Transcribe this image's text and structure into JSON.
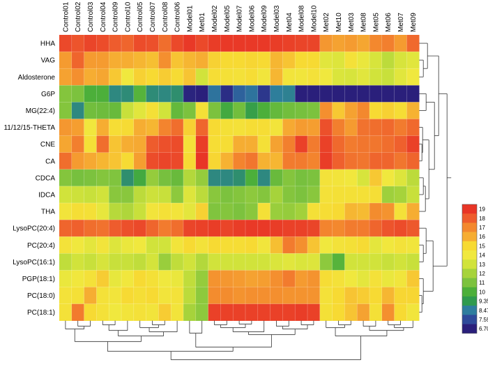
{
  "chart_data": {
    "type": "heatmap",
    "title": "",
    "columns": [
      "Control01",
      "Control02",
      "Control03",
      "Control04",
      "Control09",
      "Control10",
      "Control05",
      "Control07",
      "Control08",
      "Control06",
      "Model01",
      "Met01",
      "Model02",
      "Model05",
      "Model07",
      "Model06",
      "Model09",
      "Model03",
      "Met04",
      "Model08",
      "Model10",
      "Met02",
      "Met10",
      "Met03",
      "Met08",
      "Met05",
      "Met06",
      "Met07",
      "Met09"
    ],
    "rows": [
      "HHA",
      "VAG",
      "Aldosterone",
      "G6P",
      "MG(22:4)",
      "11/12/15-THETA",
      "CNE",
      "CA",
      "CDCA",
      "IDCA",
      "THA",
      "LysoPC(20:4)",
      "PC(20:4)",
      "LysoPC(16:1)",
      "PGP(18:1)",
      "PC(18:0)",
      "PC(18:1)"
    ],
    "values": [
      [
        18.5,
        18.2,
        18.6,
        18.4,
        18.0,
        17.8,
        18.4,
        18.3,
        17.6,
        18.5,
        18.9,
        18.5,
        18.8,
        18.9,
        18.9,
        18.9,
        18.9,
        18.8,
        18.7,
        18.6,
        18.6,
        16.6,
        16.3,
        16.5,
        16.2,
        17.0,
        17.2,
        16.5,
        17.7
      ],
      [
        16.5,
        17.8,
        16.5,
        16.5,
        16.0,
        16.0,
        15.8,
        15.6,
        16.8,
        15.5,
        15.8,
        16.0,
        15.2,
        15.0,
        15.0,
        15.1,
        15.0,
        15.8,
        15.5,
        15.0,
        15.0,
        13.5,
        13.4,
        14.5,
        13.8,
        13.2,
        12.5,
        13.2,
        13.5
      ],
      [
        16.3,
        16.8,
        16.0,
        16.2,
        15.4,
        14.0,
        15.2,
        15.0,
        15.3,
        14.9,
        15.5,
        13.0,
        14.8,
        14.6,
        14.5,
        14.8,
        14.2,
        15.8,
        14.3,
        14.2,
        14.5,
        14.0,
        13.3,
        13.2,
        13.5,
        13.0,
        12.8,
        13.5,
        14.0
      ],
      [
        11.2,
        11.0,
        10.0,
        10.0,
        8.8,
        8.9,
        10.2,
        8.9,
        8.8,
        9.0,
        6.8,
        6.7,
        8.3,
        7.0,
        8.0,
        8.3,
        7.2,
        8.5,
        8.6,
        6.6,
        6.5,
        6.4,
        6.4,
        6.4,
        6.4,
        6.5,
        6.4,
        6.4,
        6.4
      ],
      [
        11.2,
        8.8,
        10.8,
        10.7,
        10.6,
        12.8,
        13.5,
        14.6,
        13.0,
        10.5,
        11.0,
        14.6,
        11.0,
        9.8,
        10.8,
        9.5,
        10.0,
        10.5,
        10.8,
        10.9,
        11.0,
        16.8,
        15.4,
        16.3,
        17.0,
        15.0,
        15.2,
        14.8,
        15.9
      ],
      [
        16.6,
        16.4,
        14.1,
        16.0,
        14.8,
        14.9,
        16.0,
        15.8,
        17.1,
        17.6,
        15.2,
        17.8,
        15.0,
        14.6,
        14.5,
        14.8,
        14.8,
        14.3,
        16.1,
        16.5,
        16.4,
        18.3,
        17.2,
        16.5,
        17.5,
        17.6,
        17.7,
        17.3,
        17.7
      ],
      [
        16.2,
        17.2,
        14.6,
        17.6,
        15.5,
        16.0,
        16.1,
        18.0,
        18.3,
        18.4,
        14.5,
        18.8,
        14.8,
        14.8,
        16.0,
        16.0,
        14.6,
        16.3,
        17.2,
        18.7,
        17.3,
        18.7,
        17.7,
        17.3,
        17.4,
        17.4,
        17.6,
        17.9,
        18.7
      ],
      [
        17.6,
        16.5,
        16.1,
        15.8,
        15.5,
        14.9,
        16.4,
        18.4,
        18.6,
        18.5,
        14.9,
        19.0,
        15.1,
        15.9,
        17.1,
        17.4,
        15.9,
        15.8,
        17.3,
        17.3,
        17.1,
        18.8,
        17.9,
        17.5,
        17.4,
        17.8,
        17.8,
        17.4,
        17.8
      ],
      [
        11.2,
        10.9,
        11.0,
        11.2,
        11.1,
        9.0,
        9.8,
        11.6,
        10.9,
        10.6,
        12.3,
        11.6,
        8.8,
        8.8,
        9.0,
        10.0,
        8.8,
        10.6,
        11.2,
        10.9,
        11.0,
        14.4,
        14.3,
        14.1,
        13.2,
        15.4,
        14.0,
        13.4,
        12.5
      ],
      [
        13.0,
        12.9,
        12.8,
        13.0,
        11.3,
        11.3,
        12.5,
        12.9,
        12.8,
        11.4,
        13.4,
        12.5,
        11.3,
        11.0,
        11.2,
        11.4,
        11.2,
        12.0,
        11.2,
        11.0,
        11.3,
        14.5,
        14.6,
        14.6,
        14.6,
        14.7,
        11.8,
        12.0,
        12.8
      ],
      [
        14.3,
        14.7,
        14.6,
        13.7,
        12.4,
        12.2,
        12.8,
        14.3,
        14.6,
        14.3,
        13.6,
        15.2,
        11.1,
        11.2,
        11.0,
        11.3,
        14.6,
        11.7,
        11.6,
        11.9,
        14.6,
        14.8,
        15.0,
        15.8,
        15.7,
        16.9,
        16.7,
        14.5,
        16.0
      ],
      [
        17.8,
        17.9,
        17.6,
        17.5,
        18.0,
        18.3,
        18.5,
        17.8,
        17.3,
        17.6,
        18.6,
        18.7,
        18.8,
        18.6,
        18.8,
        18.9,
        18.9,
        18.8,
        18.7,
        18.7,
        18.6,
        17.1,
        17.0,
        17.3,
        17.3,
        17.8,
        18.2,
        18.4,
        18.1
      ],
      [
        14.4,
        14.0,
        13.6,
        14.3,
        13.4,
        13.8,
        14.0,
        13.0,
        13.0,
        14.3,
        15.0,
        14.4,
        15.0,
        14.8,
        14.8,
        15.0,
        14.2,
        15.6,
        17.3,
        16.8,
        15.5,
        14.0,
        14.4,
        14.6,
        14.9,
        13.6,
        14.1,
        14.4,
        14.2
      ],
      [
        12.6,
        13.0,
        12.8,
        13.2,
        12.8,
        12.8,
        12.6,
        13.1,
        11.7,
        12.6,
        13.0,
        12.3,
        13.0,
        13.0,
        13.0,
        13.0,
        13.0,
        13.3,
        13.5,
        13.3,
        13.4,
        11.4,
        10.2,
        13.0,
        13.0,
        13.0,
        12.8,
        13.0,
        12.8
      ],
      [
        13.8,
        14.1,
        14.5,
        15.3,
        13.7,
        14.1,
        15.0,
        14.6,
        14.0,
        13.8,
        12.6,
        11.6,
        16.7,
        16.6,
        16.5,
        16.3,
        16.4,
        16.8,
        17.3,
        16.5,
        16.7,
        14.8,
        14.5,
        14.0,
        13.6,
        14.5,
        13.8,
        14.2,
        15.4
      ],
      [
        14.4,
        14.6,
        16.0,
        14.5,
        14.3,
        15.0,
        14.7,
        15.0,
        14.3,
        14.4,
        12.5,
        11.4,
        16.9,
        16.9,
        16.7,
        16.8,
        16.8,
        16.8,
        16.7,
        16.7,
        16.7,
        14.5,
        15.0,
        15.5,
        15.3,
        15.0,
        15.8,
        15.1,
        15.1
      ],
      [
        14.5,
        17.3,
        15.0,
        14.5,
        14.0,
        14.3,
        14.5,
        14.3,
        15.3,
        14.3,
        12.0,
        11.4,
        18.7,
        18.7,
        18.7,
        18.7,
        18.7,
        18.7,
        18.7,
        18.8,
        18.7,
        14.6,
        15.0,
        15.5,
        16.3,
        14.6,
        16.8,
        15.0,
        14.2
      ]
    ],
    "color_scale": {
      "ticks": [
        "19",
        "18",
        "17",
        "16",
        "15",
        "14",
        "13",
        "12",
        "11",
        "10",
        "9.35",
        "8.47",
        "7.59",
        "6.70"
      ],
      "colors": [
        "#e83526",
        "#ee5c2d",
        "#f3882e",
        "#f6ad32",
        "#f7da33",
        "#f0e83e",
        "#d1e33b",
        "#a6d33b",
        "#7cc23e",
        "#4caf3a",
        "#2f9a4e",
        "#2e7d9e",
        "#2e4a9a",
        "#2a1f7b"
      ]
    },
    "dendrograms": [
      "top (rows)",
      "right (rows)",
      "bottom (columns)"
    ]
  }
}
